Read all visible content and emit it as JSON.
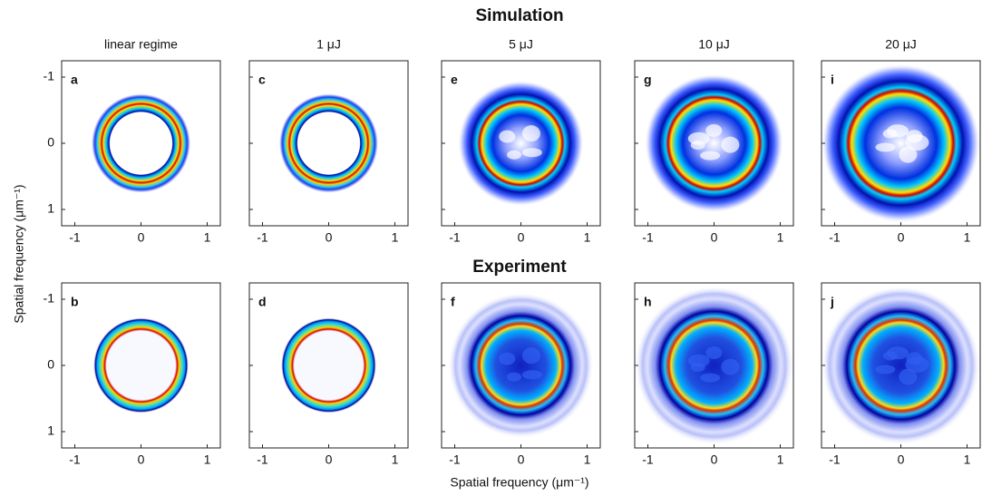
{
  "title_top": "Simulation",
  "title_bottom": "Experiment",
  "columns": [
    "linear regime",
    "1 μJ",
    "5 μJ",
    "10 μJ",
    "20 μJ"
  ],
  "panels": [
    [
      "a",
      "c",
      "e",
      "g",
      "i"
    ],
    [
      "b",
      "d",
      "f",
      "h",
      "j"
    ]
  ],
  "axis": {
    "ticks": [
      -1,
      0,
      1
    ]
  },
  "x_label": "Spatial frequency (μm⁻¹)",
  "y_label": "Spatial frequency (μm⁻¹)"
}
